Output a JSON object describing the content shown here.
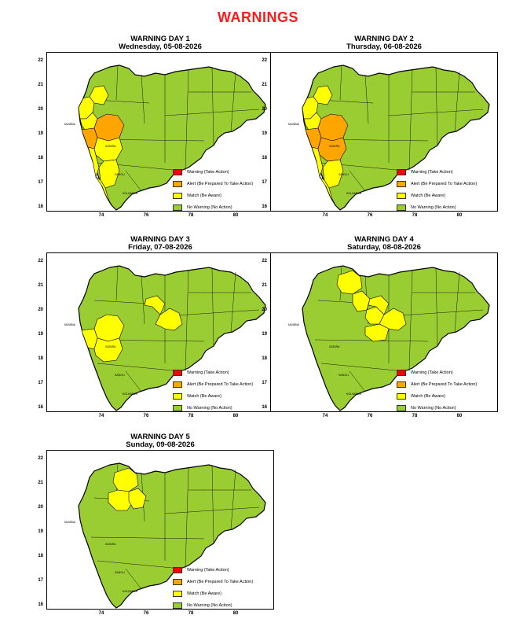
{
  "page": {
    "title": "WARNINGS"
  },
  "legend": [
    {
      "label": "Warning (Take Action)",
      "color": "#ff0000"
    },
    {
      "label": "Alert (Be Prepared To Take Action)",
      "color": "#ffa500"
    },
    {
      "label": "Watch (Be Aware)",
      "color": "#ffff00"
    },
    {
      "label": "No Warning (No Action)",
      "color": "#9acd32"
    }
  ],
  "axes": {
    "y_ticks": [
      "22",
      "21",
      "20",
      "19",
      "18",
      "17",
      "16"
    ],
    "x_ticks": [
      "74",
      "76",
      "78",
      "80"
    ]
  },
  "map_labels": [
    "MUMBAI",
    "SATARA",
    "SANGLI",
    "KOLHAPUR"
  ],
  "panels": [
    {
      "title": "WARNING DAY 1",
      "date": "Wednesday, 05-08-2026",
      "orange": [
        "pune",
        "raigad"
      ],
      "yellow": [
        "palghar",
        "thane",
        "ratnagiri",
        "satara",
        "kolhapur",
        "sindhudurg",
        "nashik_w"
      ]
    },
    {
      "title": "WARNING DAY 2",
      "date": "Thursday, 06-08-2026",
      "orange": [
        "pune",
        "raigad",
        "satara"
      ],
      "yellow": [
        "palghar",
        "thane",
        "ratnagiri",
        "kolhapur",
        "sindhudurg",
        "nashik_w"
      ]
    },
    {
      "title": "WARNING DAY 3",
      "date": "Friday, 07-08-2026",
      "orange": [],
      "yellow": [
        "pune",
        "raigad",
        "satara",
        "hingoli",
        "nanded"
      ]
    },
    {
      "title": "WARNING DAY 4",
      "date": "Saturday, 08-08-2026",
      "orange": [],
      "yellow": [
        "jalgaon",
        "jalna",
        "parbhani",
        "hingoli",
        "nanded",
        "latur"
      ]
    },
    {
      "title": "WARNING DAY 5",
      "date": "Sunday, 09-08-2026",
      "orange": [],
      "yellow": [
        "jalgaon",
        "aurangabad",
        "jalna"
      ]
    }
  ]
}
